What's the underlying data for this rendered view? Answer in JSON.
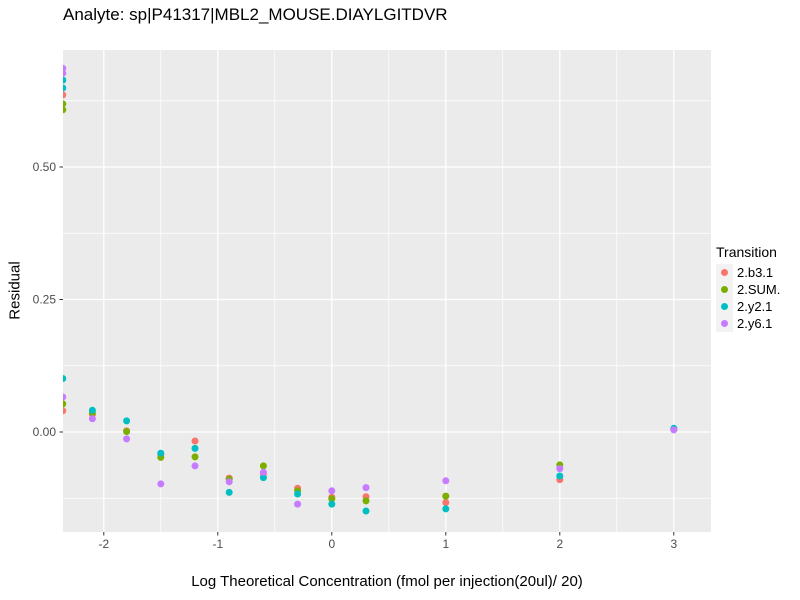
{
  "chart_data": {
    "type": "scatter",
    "title": "Analyte: sp|P41317|MBL2_MOUSE.DIAYLGITDVR",
    "xlabel": "Log Theoretical Concentration (fmol per injection(20ul)/ 20)",
    "ylabel": "Residual",
    "legend_title": "Transition",
    "legend_position": "right",
    "grid": "on",
    "xlim": [
      -2.36,
      3.33
    ],
    "ylim": [
      -0.189,
      0.721
    ],
    "x_ticks": [
      -2,
      -1,
      0,
      1,
      2,
      3
    ],
    "x_tick_labels": [
      "-2",
      "-1",
      "0",
      "1",
      "2",
      "3"
    ],
    "x_minor_ticks": [
      -1.5,
      -0.5,
      0.5,
      1.5,
      2.5
    ],
    "y_ticks": [
      0.0,
      0.25,
      0.5
    ],
    "y_tick_labels": [
      "0.00",
      "0.25",
      "0.50"
    ],
    "y_minor_ticks": [
      -0.125,
      0.125,
      0.375,
      0.625
    ],
    "series": [
      {
        "name": "2.b3.1",
        "color": "#F8766D",
        "points": [
          [
            -2.36,
            0.636
          ],
          [
            -2.36,
            0.04
          ],
          [
            -2.1,
            0.033
          ],
          [
            -1.8,
            0.002
          ],
          [
            -1.5,
            -0.043
          ],
          [
            -1.2,
            -0.017
          ],
          [
            -0.9,
            -0.087
          ],
          [
            -0.6,
            -0.079
          ],
          [
            -0.3,
            -0.106
          ],
          [
            0,
            -0.123
          ],
          [
            0.3,
            -0.122
          ],
          [
            1,
            -0.133
          ],
          [
            2,
            -0.09
          ],
          [
            3,
            0.005
          ]
        ]
      },
      {
        "name": "2.SUM.",
        "color": "#7CAE00",
        "points": [
          [
            -2.36,
            0.619
          ],
          [
            -2.36,
            0.608
          ],
          [
            -2.36,
            0.053
          ],
          [
            -2.1,
            0.036
          ],
          [
            -1.8,
            0.001
          ],
          [
            -1.5,
            -0.048
          ],
          [
            -1.2,
            -0.047
          ],
          [
            -0.9,
            -0.089
          ],
          [
            -0.6,
            -0.064
          ],
          [
            -0.3,
            -0.111
          ],
          [
            0,
            -0.126
          ],
          [
            0.3,
            -0.13
          ],
          [
            1,
            -0.121
          ],
          [
            2,
            -0.062
          ],
          [
            3,
            0.005
          ]
        ]
      },
      {
        "name": "2.y2.1",
        "color": "#00BFC4",
        "points": [
          [
            -2.36,
            0.664
          ],
          [
            -2.36,
            0.649
          ],
          [
            -2.36,
            0.101
          ],
          [
            -2.1,
            0.041
          ],
          [
            -1.8,
            0.021
          ],
          [
            -1.5,
            -0.04
          ],
          [
            -1.2,
            -0.031
          ],
          [
            -0.9,
            -0.114
          ],
          [
            -0.6,
            -0.086
          ],
          [
            -0.3,
            -0.117
          ],
          [
            0,
            -0.136
          ],
          [
            0.3,
            -0.149
          ],
          [
            1,
            -0.145
          ],
          [
            2,
            -0.083
          ],
          [
            3,
            0.007
          ]
        ]
      },
      {
        "name": "2.y6.1",
        "color": "#C77CFF",
        "points": [
          [
            -2.36,
            0.686
          ],
          [
            -2.36,
            0.677
          ],
          [
            -2.36,
            0.066
          ],
          [
            -2.1,
            0.025
          ],
          [
            -1.8,
            -0.013
          ],
          [
            -1.5,
            -0.098
          ],
          [
            -1.2,
            -0.064
          ],
          [
            -0.9,
            -0.094
          ],
          [
            -0.6,
            -0.076
          ],
          [
            -0.3,
            -0.136
          ],
          [
            0,
            -0.111
          ],
          [
            0.3,
            -0.105
          ],
          [
            1,
            -0.092
          ],
          [
            2,
            -0.069
          ],
          [
            3,
            0.004
          ]
        ]
      }
    ],
    "colors": {
      "panel_background": "#EBEBEB",
      "gridline": "#FFFFFF",
      "tick_mark": "#333333",
      "tick_label": "#4D4D4D",
      "legend_key_background": "#F2F2F2",
      "text": "#000000"
    }
  }
}
